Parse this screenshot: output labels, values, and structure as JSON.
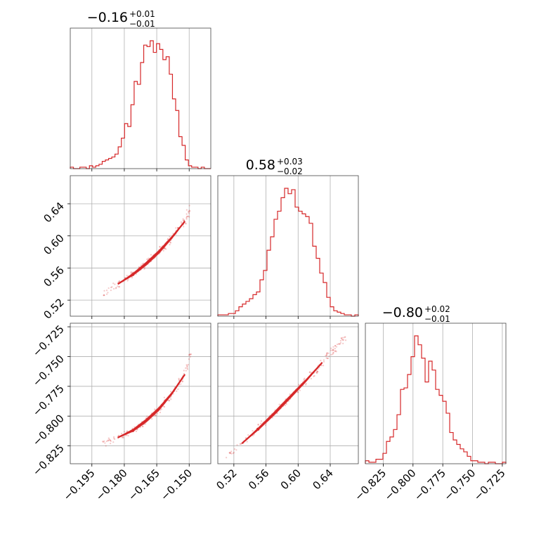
{
  "chart_data": {
    "type": "corner",
    "color": "#d62728",
    "params": [
      {
        "title_value": "−0.16",
        "title_plus": "+0.01",
        "title_minus": "−0.01",
        "range": [
          -0.205,
          -0.14
        ],
        "ticks": [
          -0.195,
          -0.18,
          -0.165,
          -0.15
        ],
        "tick_labels": [
          "−0.195",
          "−0.180",
          "−0.165",
          "−0.150"
        ],
        "hist": [
          1,
          0,
          0,
          1,
          1,
          0,
          2,
          1,
          2,
          3,
          5,
          6,
          7,
          8,
          10,
          15,
          21,
          31,
          29,
          44,
          60,
          58,
          73,
          85,
          84,
          88,
          80,
          86,
          82,
          75,
          77,
          65,
          48,
          40,
          22,
          16,
          6,
          2,
          1,
          1,
          0,
          1,
          0,
          0
        ],
        "contour_x": [
          -0.188,
          -0.183,
          -0.178,
          -0.172,
          -0.167,
          -0.162,
          -0.157,
          -0.152,
          -0.15
        ]
      },
      {
        "title_value": "0.58",
        "title_plus": "+0.03",
        "title_minus": "−0.02",
        "range": [
          0.5,
          0.675
        ],
        "ticks": [
          0.52,
          0.56,
          0.6,
          0.64
        ],
        "tick_labels": [
          "0.52",
          "0.56",
          "0.60",
          "0.64"
        ],
        "hist": [
          1,
          1,
          1,
          2,
          2,
          4,
          7,
          9,
          11,
          13,
          16,
          18,
          27,
          34,
          49,
          59,
          72,
          78,
          88,
          95,
          91,
          94,
          81,
          78,
          76,
          74,
          69,
          52,
          43,
          32,
          25,
          14,
          7,
          4,
          3,
          2,
          1,
          1,
          0,
          1
        ],
        "contour_x": [
          0.53,
          0.55,
          0.57,
          0.59,
          0.61,
          0.63,
          0.65
        ]
      },
      {
        "title_value": "−0.80",
        "title_plus": "+0.02",
        "title_minus": "−0.01",
        "range": [
          -0.84,
          -0.722
        ],
        "ticks": [
          -0.825,
          -0.8,
          -0.775,
          -0.75,
          -0.725
        ],
        "tick_labels": [
          "−0.825",
          "−0.800",
          "−0.775",
          "−0.750",
          "−0.725"
        ],
        "hist": [
          2,
          1,
          1,
          3,
          3,
          7,
          15,
          18,
          23,
          33,
          50,
          51,
          60,
          72,
          86,
          80,
          71,
          55,
          69,
          63,
          50,
          46,
          42,
          34,
          21,
          16,
          13,
          10,
          8,
          5,
          2,
          2,
          1,
          1,
          0,
          1,
          1,
          0,
          0,
          1
        ],
        "contour_x": []
      }
    ],
    "curve_params": {
      "p0_vs_p1": {
        "x": [
          -0.19,
          -0.183,
          -0.176,
          -0.17,
          -0.164,
          -0.158,
          -0.152,
          -0.149
        ],
        "y": [
          0.528,
          0.54,
          0.552,
          0.565,
          0.58,
          0.598,
          0.618,
          0.64
        ]
      },
      "p0_vs_p2": {
        "x": [
          -0.19,
          -0.183,
          -0.176,
          -0.17,
          -0.164,
          -0.158,
          -0.152,
          -0.149
        ],
        "y": [
          -0.823,
          -0.818,
          -0.812,
          -0.804,
          -0.794,
          -0.781,
          -0.765,
          -0.745
        ]
      },
      "p1_vs_p2": {
        "x": [
          0.51,
          0.53,
          0.55,
          0.57,
          0.59,
          0.61,
          0.63,
          0.66
        ],
        "y": [
          -0.835,
          -0.823,
          -0.811,
          -0.798,
          -0.784,
          -0.77,
          -0.755,
          -0.733
        ]
      }
    }
  }
}
